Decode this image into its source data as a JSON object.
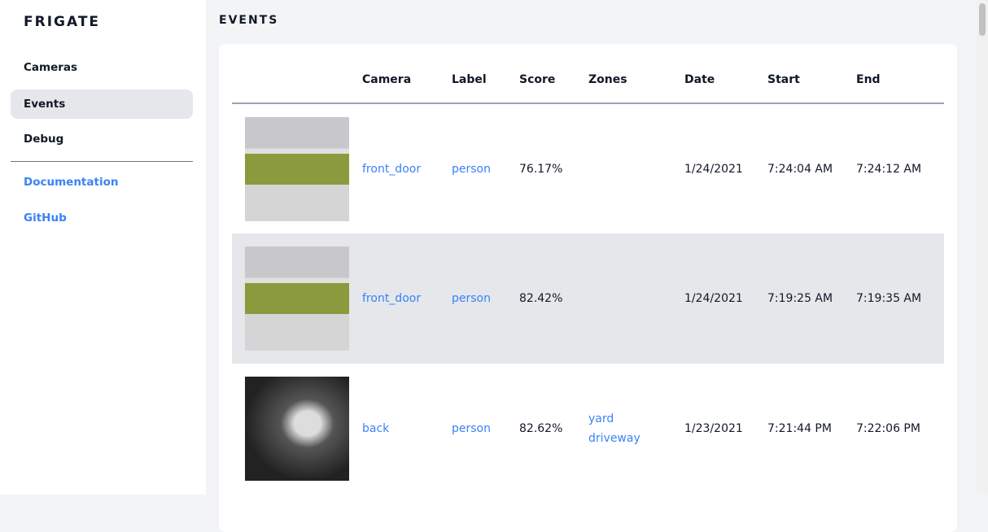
{
  "sidebar": {
    "brand": "FRIGATE",
    "items": [
      {
        "label": "Cameras"
      },
      {
        "label": "Events"
      },
      {
        "label": "Debug"
      }
    ],
    "links": [
      {
        "label": "Documentation"
      },
      {
        "label": "GitHub"
      }
    ]
  },
  "page": {
    "title": "EVENTS"
  },
  "table": {
    "headers": [
      "",
      "Camera",
      "Label",
      "Score",
      "Zones",
      "Date",
      "Start",
      "End"
    ],
    "rows": [
      {
        "camera": "front_door",
        "label": "person",
        "score": "76.17%",
        "zones": [
          "",
          ""
        ],
        "date": "1/24/2021",
        "start": "7:24:04 AM",
        "end": "7:24:12 AM"
      },
      {
        "camera": "front_door",
        "label": "person",
        "score": "82.42%",
        "zones": [
          "",
          ""
        ],
        "date": "1/24/2021",
        "start": "7:19:25 AM",
        "end": "7:19:35 AM"
      },
      {
        "camera": "back",
        "label": "person",
        "score": "82.62%",
        "zones": [
          "yard",
          "driveway"
        ],
        "date": "1/23/2021",
        "start": "7:21:44 PM",
        "end": "7:22:06 PM"
      }
    ]
  },
  "colors": {
    "accent": "#3b82f6",
    "active_bg": "#e5e7eb"
  }
}
